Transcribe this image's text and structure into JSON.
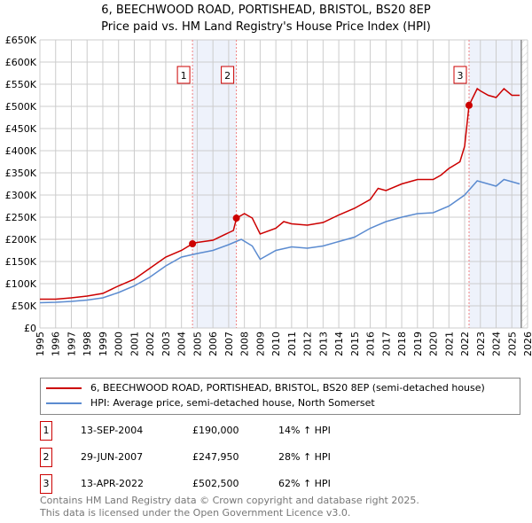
{
  "title": "6, BEECHWOOD ROAD, PORTISHEAD, BRISTOL, BS20 8EP",
  "subtitle": "Price paid vs. HM Land Registry's House Price Index (HPI)",
  "chart_data": {
    "type": "line",
    "xlim": [
      1995,
      2026
    ],
    "ylim": [
      0,
      650000
    ],
    "y_ticks": [
      "£0",
      "£50K",
      "£100K",
      "£150K",
      "£200K",
      "£250K",
      "£300K",
      "£350K",
      "£400K",
      "£450K",
      "£500K",
      "£550K",
      "£600K",
      "£650K"
    ],
    "x_ticks": [
      "1995",
      "1996",
      "1997",
      "1998",
      "1999",
      "2000",
      "2001",
      "2002",
      "2003",
      "2004",
      "2005",
      "2006",
      "2007",
      "2008",
      "2009",
      "2010",
      "2011",
      "2012",
      "2013",
      "2014",
      "2015",
      "2016",
      "2017",
      "2018",
      "2019",
      "2020",
      "2021",
      "2022",
      "2023",
      "2024",
      "2025",
      "2026"
    ],
    "series": [
      {
        "name": "6, BEECHWOOD ROAD, PORTISHEAD, BRISTOL, BS20 8EP (semi-detached house)",
        "color": "#cc0000",
        "x": [
          1995,
          1996,
          1997,
          1998,
          1999,
          2000,
          2001,
          2002,
          2003,
          2004,
          2004.7,
          2005,
          2006,
          2007,
          2007.3,
          2007.5,
          2008,
          2008.5,
          2009,
          2010,
          2010.5,
          2011,
          2012,
          2013,
          2014,
          2015,
          2016,
          2016.5,
          2017,
          2018,
          2019,
          2020,
          2020.5,
          2021,
          2021.7,
          2022,
          2022.28,
          2022.8,
          2023,
          2023.5,
          2024,
          2024.5,
          2025,
          2025.5
        ],
        "y": [
          65000,
          65000,
          68000,
          72000,
          78000,
          95000,
          110000,
          135000,
          160000,
          175000,
          190000,
          193000,
          198000,
          215000,
          220000,
          247950,
          258000,
          248000,
          212000,
          225000,
          240000,
          235000,
          232000,
          238000,
          255000,
          270000,
          290000,
          315000,
          310000,
          325000,
          335000,
          335000,
          345000,
          360000,
          375000,
          410000,
          502500,
          540000,
          535000,
          525000,
          520000,
          540000,
          525000,
          525000
        ]
      },
      {
        "name": "HPI: Average price, semi-detached house, North Somerset",
        "color": "#5b8bd0",
        "x": [
          1995,
          1996,
          1997,
          1998,
          1999,
          2000,
          2001,
          2002,
          2003,
          2004,
          2005,
          2006,
          2007,
          2007.8,
          2008.5,
          2009,
          2010,
          2011,
          2012,
          2013,
          2014,
          2015,
          2016,
          2017,
          2018,
          2019,
          2020,
          2021,
          2022,
          2022.8,
          2023.5,
          2024,
          2024.5,
          2025,
          2025.5
        ],
        "y": [
          57000,
          58000,
          60000,
          63000,
          68000,
          80000,
          95000,
          115000,
          140000,
          160000,
          168000,
          175000,
          188000,
          200000,
          185000,
          155000,
          175000,
          183000,
          180000,
          185000,
          195000,
          205000,
          225000,
          240000,
          250000,
          258000,
          260000,
          275000,
          300000,
          332000,
          325000,
          320000,
          335000,
          330000,
          325000
        ]
      }
    ],
    "sales": [
      {
        "label": "1",
        "x": 2004.7,
        "y": 190000
      },
      {
        "label": "2",
        "x": 2007.49,
        "y": 247950
      },
      {
        "label": "3",
        "x": 2022.28,
        "y": 502500
      }
    ]
  },
  "legend": [
    "6, BEECHWOOD ROAD, PORTISHEAD, BRISTOL, BS20 8EP (semi-detached house)",
    "HPI: Average price, semi-detached house, North Somerset"
  ],
  "transactions": [
    {
      "num": "1",
      "date": "13-SEP-2004",
      "price": "£190,000",
      "hpi": "14% ↑ HPI"
    },
    {
      "num": "2",
      "date": "29-JUN-2007",
      "price": "£247,950",
      "hpi": "28% ↑ HPI"
    },
    {
      "num": "3",
      "date": "13-APR-2022",
      "price": "£502,500",
      "hpi": "62% ↑ HPI"
    }
  ],
  "footer": [
    "Contains HM Land Registry data © Crown copyright and database right 2025.",
    "This data is licensed under the Open Government Licence v3.0."
  ]
}
